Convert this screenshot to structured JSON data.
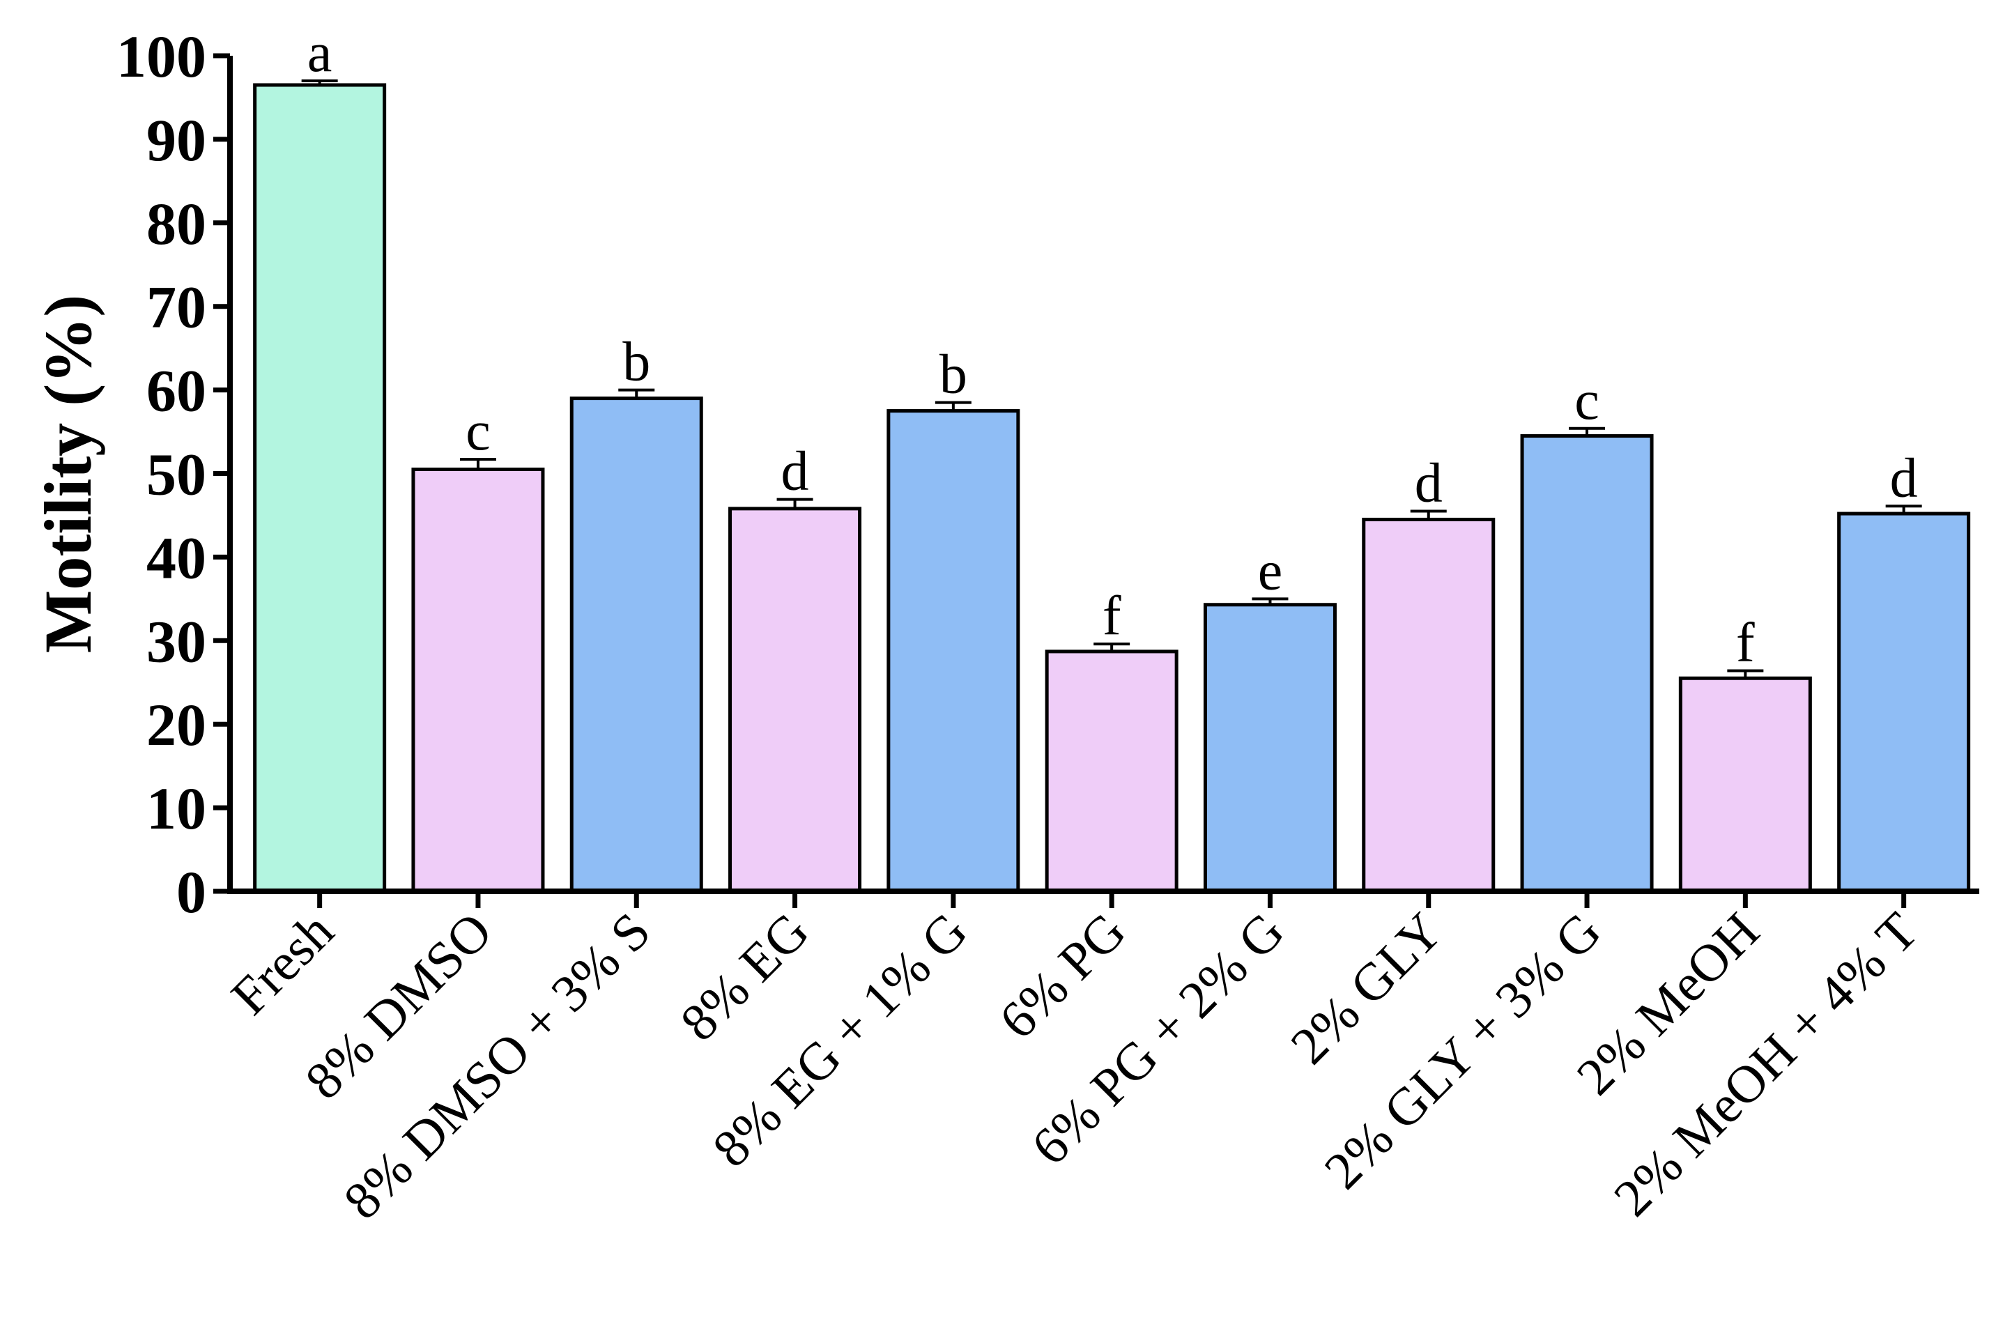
{
  "chart_data": {
    "type": "bar",
    "title": "",
    "xlabel": "",
    "ylabel": "Motility (%)",
    "ylim": [
      0,
      100
    ],
    "yticks": [
      "0",
      "10",
      "20",
      "30",
      "40",
      "50",
      "60",
      "70",
      "80",
      "90",
      "100"
    ],
    "grid": false,
    "categories": [
      "Fresh",
      "8% DMSO",
      "8% DMSO + 3% S",
      "8% EG",
      "8% EG + 1% G",
      "6% PG",
      "6% PG + 2% G",
      "2% GLY",
      "2% GLY + 3% G",
      "2% MeOH",
      "2% MeOH + 4% T"
    ],
    "values": [
      96.5,
      50.5,
      59,
      45.8,
      57.5,
      28.7,
      34.3,
      44.5,
      54.5,
      25.5,
      45.2
    ],
    "errors": [
      0.5,
      1.2,
      1.0,
      1.1,
      1.0,
      0.9,
      0.7,
      1.0,
      0.9,
      0.9,
      0.9
    ],
    "significance": [
      "a",
      "c",
      "b",
      "d",
      "b",
      "f",
      "e",
      "d",
      "c",
      "f",
      "d"
    ],
    "colors": [
      "#b3f5e0",
      "#efcdf8",
      "#8fbdf5",
      "#efcdf8",
      "#8fbdf5",
      "#efcdf8",
      "#8fbdf5",
      "#efcdf8",
      "#8fbdf5",
      "#efcdf8",
      "#8fbdf5"
    ]
  }
}
